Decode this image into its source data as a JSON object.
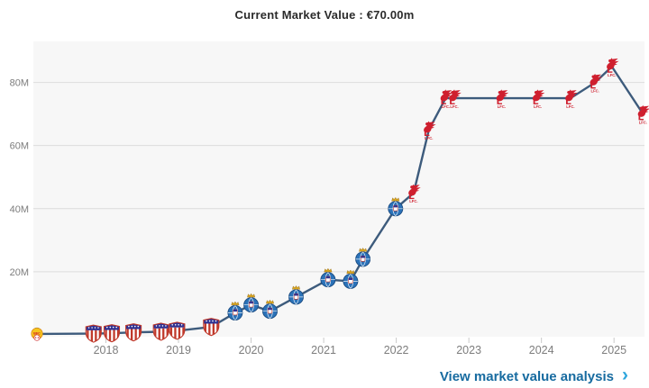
{
  "header": {
    "title": "Current Market Value : €70.00m"
  },
  "footer": {
    "link_label": "View market value analysis",
    "chevron": "›"
  },
  "chart_data": {
    "type": "line",
    "title": "Current Market Value : €70.00m",
    "unit": "€ million",
    "xlim": [
      2017.0,
      2025.42
    ],
    "ylim": [
      0,
      93
    ],
    "grid": true,
    "legend": "none",
    "x_ticks": [
      2018,
      2019,
      2020,
      2021,
      2022,
      2023,
      2024,
      2025
    ],
    "x_tick_labels": [
      "2018",
      "2019",
      "2020",
      "2021",
      "2022",
      "2023",
      "2024",
      "2025"
    ],
    "y_ticks": [
      20,
      40,
      60,
      80
    ],
    "y_tick_labels": [
      "20M",
      "40M",
      "60M",
      "80M"
    ],
    "series": [
      {
        "name": "market-value",
        "points": [
          {
            "x": 2017.05,
            "y": 0.3,
            "club": "barranquilla"
          },
          {
            "x": 2017.83,
            "y": 0.4,
            "club": "junior"
          },
          {
            "x": 2018.08,
            "y": 0.5,
            "club": "junior"
          },
          {
            "x": 2018.38,
            "y": 0.8,
            "club": "junior"
          },
          {
            "x": 2018.76,
            "y": 1.0,
            "club": "junior"
          },
          {
            "x": 2018.98,
            "y": 1.3,
            "club": "junior"
          },
          {
            "x": 2019.45,
            "y": 2.5,
            "club": "junior"
          },
          {
            "x": 2019.78,
            "y": 7.0,
            "club": "porto"
          },
          {
            "x": 2020.0,
            "y": 9.5,
            "club": "porto"
          },
          {
            "x": 2020.26,
            "y": 7.5,
            "club": "porto"
          },
          {
            "x": 2020.62,
            "y": 12.0,
            "club": "porto"
          },
          {
            "x": 2021.06,
            "y": 17.5,
            "club": "porto"
          },
          {
            "x": 2021.37,
            "y": 17.0,
            "club": "porto"
          },
          {
            "x": 2021.54,
            "y": 24.0,
            "club": "porto"
          },
          {
            "x": 2021.99,
            "y": 40.0,
            "club": "porto"
          },
          {
            "x": 2022.24,
            "y": 45.0,
            "club": "liverpool"
          },
          {
            "x": 2022.45,
            "y": 65.0,
            "club": "liverpool"
          },
          {
            "x": 2022.68,
            "y": 75.0,
            "club": "liverpool"
          },
          {
            "x": 2022.8,
            "y": 75.0,
            "club": "liverpool"
          },
          {
            "x": 2023.45,
            "y": 75.0,
            "club": "liverpool"
          },
          {
            "x": 2023.95,
            "y": 75.0,
            "club": "liverpool"
          },
          {
            "x": 2024.4,
            "y": 75.0,
            "club": "liverpool"
          },
          {
            "x": 2024.74,
            "y": 80.0,
            "club": "liverpool"
          },
          {
            "x": 2024.97,
            "y": 85.0,
            "club": "liverpool"
          },
          {
            "x": 2025.4,
            "y": 70.0,
            "club": "liverpool"
          }
        ]
      }
    ]
  },
  "icons": {
    "marker_text": {
      "barranquilla": "BFC",
      "liverpool": "LFC."
    }
  },
  "colors": {
    "line": "#3d5b7c",
    "plot_bg": "#f7f7f7",
    "grid": "#dcdcdc",
    "tick": "#c9c9c9",
    "axis_label": "#7d7d7d",
    "title": "#2b2b2b",
    "link": "#176ba0",
    "chevron": "#2ea6dd",
    "junior_red": "#c0392b",
    "junior_blue": "#2e3192",
    "porto_blue": "#2b72b8",
    "porto_crown": "#d9a520",
    "lfc_red": "#cf1f2e",
    "bfc_yellow": "#f5c51d",
    "bfc_green": "#1b8a3a",
    "bfc_red": "#d42027"
  }
}
